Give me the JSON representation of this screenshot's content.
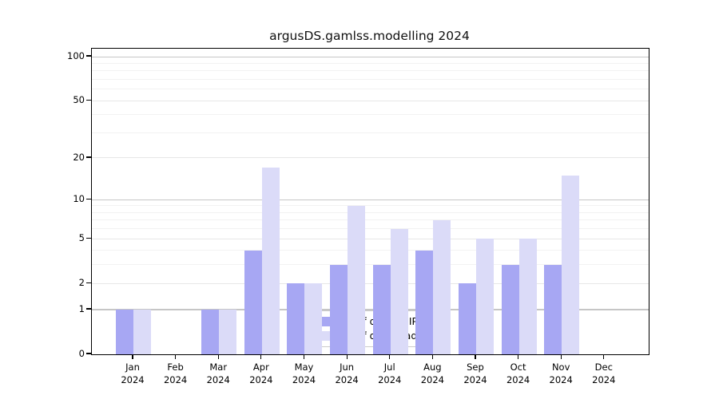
{
  "chart_data": {
    "type": "bar",
    "title": "argusDS.gamlss.modelling 2024",
    "x_tick_months": [
      "Jan",
      "Feb",
      "Mar",
      "Apr",
      "May",
      "Jun",
      "Jul",
      "Aug",
      "Sep",
      "Oct",
      "Nov",
      "Dec"
    ],
    "x_tick_year_line": "2024",
    "series": [
      {
        "name": "Nb of distinct IPs",
        "color": "#a7a7f3",
        "values": [
          1,
          0,
          1,
          4,
          2,
          3,
          3,
          4,
          2,
          3,
          3,
          0
        ]
      },
      {
        "name": "Nb of downloads",
        "color": "#dbdbf8",
        "values": [
          1,
          0,
          1,
          17,
          2,
          9,
          6,
          7,
          5,
          5,
          15,
          0
        ]
      }
    ],
    "yscale": "log1p",
    "ylim": [
      0,
      113
    ],
    "y_ticks": [
      0,
      1,
      2,
      5,
      10,
      20,
      50,
      100
    ],
    "y_minor_gridlines": [
      3,
      4,
      6,
      7,
      8,
      9,
      30,
      40,
      60,
      70,
      80,
      90
    ],
    "grid": true,
    "legend_position": "lower-center",
    "colors": {
      "grid_decade": "#c6c6c6",
      "grid_labeled": "#e7e7e7",
      "grid_minor": "#f2f2f2",
      "axis": "#000000",
      "background": "#ffffff"
    }
  }
}
